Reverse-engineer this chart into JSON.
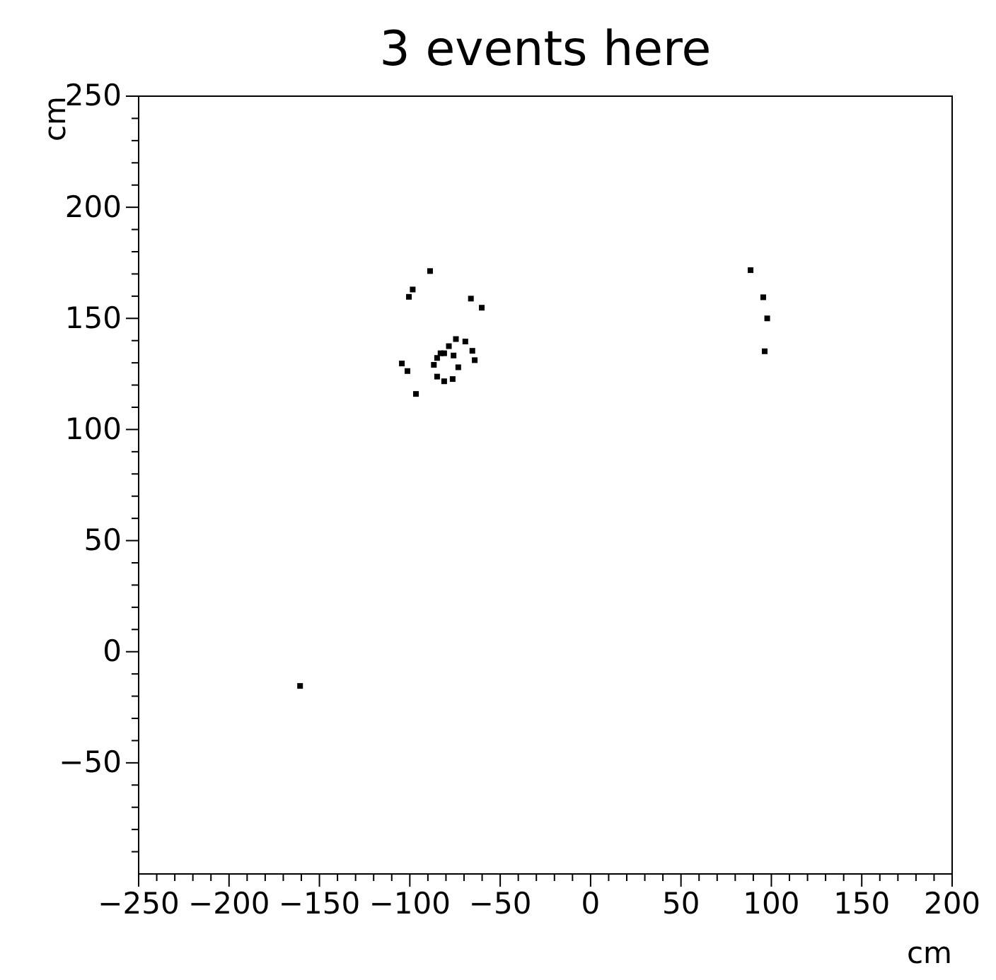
{
  "chart_data": {
    "type": "scatter",
    "title": "3 events here",
    "xlabel": "cm",
    "ylabel": "cm",
    "marker": "square",
    "grid": false,
    "xlim": [
      -250,
      200
    ],
    "ylim": [
      -100,
      250
    ],
    "xticks": [
      -250,
      {
        "value": -240,
        "label": null
      },
      {
        "value": -230,
        "label": null
      },
      {
        "value": -220,
        "label": null
      },
      {
        "value": -210,
        "label": null
      },
      -200,
      {
        "value": -190,
        "label": null
      },
      {
        "value": -180,
        "label": null
      },
      {
        "value": -170,
        "label": null
      },
      {
        "value": -160,
        "label": null
      },
      -150,
      {
        "value": -140,
        "label": null
      },
      {
        "value": -130,
        "label": null
      },
      {
        "value": -120,
        "label": null
      },
      {
        "value": -110,
        "label": null
      },
      -100,
      {
        "value": -90,
        "label": null
      },
      {
        "value": -80,
        "label": null
      },
      {
        "value": -70,
        "label": null
      },
      {
        "value": -60,
        "label": null
      },
      -50,
      {
        "value": -40,
        "label": null
      },
      {
        "value": -30,
        "label": null
      },
      {
        "value": -20,
        "label": null
      },
      {
        "value": -10,
        "label": null
      },
      0,
      {
        "value": 10,
        "label": null
      },
      {
        "value": 20,
        "label": null
      },
      {
        "value": 30,
        "label": null
      },
      {
        "value": 40,
        "label": null
      },
      50,
      {
        "value": 60,
        "label": null
      },
      {
        "value": 70,
        "label": null
      },
      {
        "value": 80,
        "label": null
      },
      {
        "value": 90,
        "label": null
      },
      100,
      {
        "value": 110,
        "label": null
      },
      {
        "value": 120,
        "label": null
      },
      {
        "value": 130,
        "label": null
      },
      {
        "value": 140,
        "label": null
      },
      150,
      {
        "value": 160,
        "label": null
      },
      {
        "value": 170,
        "label": null
      },
      {
        "value": 180,
        "label": null
      },
      {
        "value": 190,
        "label": null
      },
      200
    ],
    "yticks": [
      {
        "value": -90,
        "label": null
      },
      {
        "value": -80,
        "label": null
      },
      {
        "value": -70,
        "label": null
      },
      {
        "value": -60,
        "label": null
      },
      -50,
      {
        "value": -40,
        "label": null
      },
      {
        "value": -30,
        "label": null
      },
      {
        "value": -20,
        "label": null
      },
      {
        "value": -10,
        "label": null
      },
      0,
      {
        "value": 10,
        "label": null
      },
      {
        "value": 20,
        "label": null
      },
      {
        "value": 30,
        "label": null
      },
      {
        "value": 40,
        "label": null
      },
      50,
      {
        "value": 60,
        "label": null
      },
      {
        "value": 70,
        "label": null
      },
      {
        "value": 80,
        "label": null
      },
      {
        "value": 90,
        "label": null
      },
      100,
      {
        "value": 110,
        "label": null
      },
      {
        "value": 120,
        "label": null
      },
      {
        "value": 130,
        "label": null
      },
      {
        "value": 140,
        "label": null
      },
      150,
      {
        "value": 160,
        "label": null
      },
      {
        "value": 170,
        "label": null
      },
      {
        "value": 180,
        "label": null
      },
      {
        "value": 190,
        "label": null
      },
      200,
      {
        "value": 210,
        "label": null
      },
      {
        "value": 220,
        "label": null
      },
      {
        "value": 230,
        "label": null
      },
      {
        "value": 240,
        "label": null
      },
      250
    ],
    "series": [
      {
        "color": "#000000",
        "x": [
          -88.8,
          -98.4,
          -100.5,
          -66.2,
          -60.2,
          -104.4,
          -101.3,
          -96.6,
          -64.1,
          -65.4,
          -69.3,
          -74.5,
          -78.4,
          -81.0,
          -84.9,
          -86.7,
          -84.9,
          -81.0,
          -76.3,
          -73.2,
          -75.8,
          -83.0,
          88.5,
          95.5,
          97.7,
          96.3,
          -160.7
        ],
        "values": [
          171.3,
          163.0,
          159.7,
          158.9,
          154.8,
          129.7,
          126.3,
          116.0,
          131.2,
          135.4,
          139.6,
          140.7,
          137.5,
          134.3,
          132.2,
          129.1,
          123.8,
          121.7,
          122.7,
          128.0,
          133.3,
          134.3,
          171.7,
          159.5,
          150.0,
          135.2,
          -15.4
        ]
      }
    ]
  }
}
